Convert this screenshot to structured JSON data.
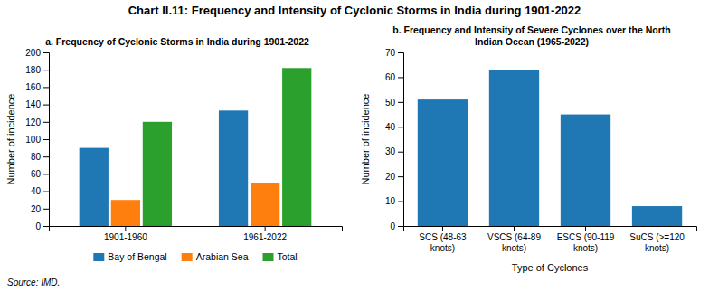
{
  "title": "Chart II.11: Frequency and Intensity of Cyclonic Storms in India during 1901-2022",
  "annotations": [
    "Source: IMD."
  ],
  "chart_data": [
    {
      "type": "bar",
      "title": "a. Frequency of Cyclonic Storms in India during 1901-2022",
      "categories": [
        "1901-1960",
        "1961-2022"
      ],
      "series": [
        {
          "name": "Bay of Bengal",
          "values": [
            90,
            133
          ]
        },
        {
          "name": "Arabian Sea",
          "values": [
            30,
            49
          ]
        },
        {
          "name": "Total",
          "values": [
            120,
            182
          ]
        }
      ],
      "ylabel": "Number of incidence",
      "ylim": [
        0,
        200
      ],
      "yticks": [
        0,
        20,
        40,
        60,
        80,
        100,
        120,
        140,
        160,
        180,
        200
      ],
      "grid": false,
      "legend": "bottom"
    },
    {
      "type": "bar",
      "title": "b. Frequency and Intensity of Severe Cyclones over the North\nIndian Ocean (1965-2022)",
      "categories": [
        "SCS (48-63\nknots)",
        "VSCS (64-89\nknots)",
        "ESCS (90-119\nknots)",
        "SuCS (>=120\nknots)"
      ],
      "values": [
        51,
        63,
        45,
        8
      ],
      "xlabel": "Type of Cyclones",
      "ylabel": "Number of incidence",
      "ylim": [
        0,
        70
      ],
      "yticks": [
        0,
        10,
        20,
        30,
        40,
        50,
        60,
        70
      ],
      "grid": false
    }
  ]
}
